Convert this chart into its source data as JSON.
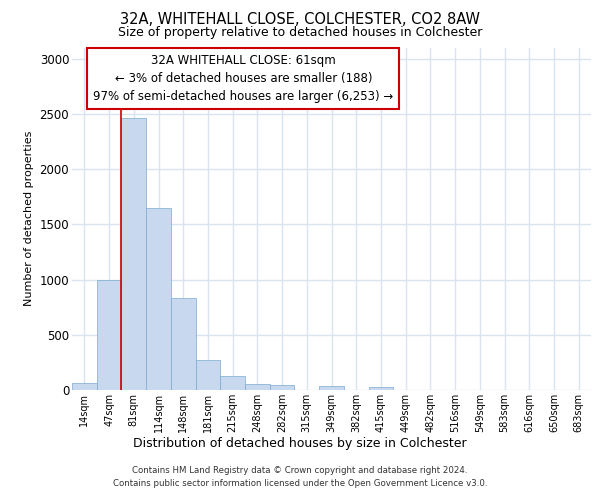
{
  "title_line1": "32A, WHITEHALL CLOSE, COLCHESTER, CO2 8AW",
  "title_line2": "Size of property relative to detached houses in Colchester",
  "xlabel": "Distribution of detached houses by size in Colchester",
  "ylabel": "Number of detached properties",
  "bar_color": "#c8d8ee",
  "bar_edge_color": "#7aaad0",
  "categories": [
    "14sqm",
    "47sqm",
    "81sqm",
    "114sqm",
    "148sqm",
    "181sqm",
    "215sqm",
    "248sqm",
    "282sqm",
    "315sqm",
    "349sqm",
    "382sqm",
    "415sqm",
    "449sqm",
    "482sqm",
    "516sqm",
    "549sqm",
    "583sqm",
    "616sqm",
    "650sqm",
    "683sqm"
  ],
  "values": [
    60,
    1000,
    2460,
    1650,
    830,
    270,
    130,
    55,
    45,
    0,
    40,
    0,
    30,
    0,
    0,
    0,
    0,
    0,
    0,
    0,
    0
  ],
  "ylim": [
    0,
    3100
  ],
  "yticks": [
    0,
    500,
    1000,
    1500,
    2000,
    2500,
    3000
  ],
  "annotation_text": "32A WHITEHALL CLOSE: 61sqm\n← 3% of detached houses are smaller (188)\n97% of semi-detached houses are larger (6,253) →",
  "vline_color": "#cc0000",
  "annotation_box_facecolor": "#ffffff",
  "annotation_box_edgecolor": "#cc0000",
  "footer_text": "Contains HM Land Registry data © Crown copyright and database right 2024.\nContains public sector information licensed under the Open Government Licence v3.0.",
  "background_color": "#ffffff",
  "plot_bg_color": "#ffffff",
  "grid_color": "#d8e4f0"
}
